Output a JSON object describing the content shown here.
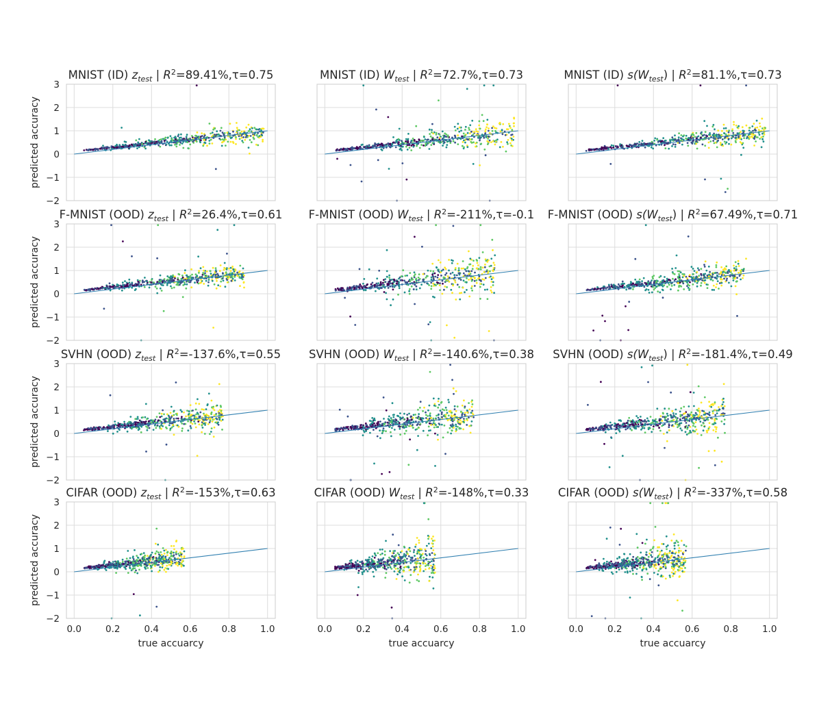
{
  "chart_data": {
    "type": "scatter",
    "grid": true,
    "x_label": "true accuarcy",
    "y_label": "predicted accuracy",
    "xlim": [
      -0.04,
      1.04
    ],
    "ylim": [
      -2,
      3
    ],
    "x_ticks": [
      "0.0",
      "0.2",
      "0.4",
      "0.6",
      "0.8",
      "1.0"
    ],
    "y_ticks": [
      "3",
      "2",
      "1",
      "0",
      "−1",
      "−2"
    ],
    "reference_line": {
      "from": [
        0,
        0
      ],
      "to": [
        1,
        1
      ],
      "color": "#2f7fb0"
    },
    "palette": [
      "#440154",
      "#3b528b",
      "#21908c",
      "#5dc863",
      "#fde725"
    ],
    "rows": [
      "MNIST (ID)",
      "F-MNIST (OOD)",
      "SVHN (OOD)",
      "CIFAR (OOD)"
    ],
    "columns": [
      "z_test",
      "W_test",
      "s(W_test)"
    ],
    "panels": [
      {
        "dataset": "MNIST (ID)",
        "metric": "z",
        "sub": "test",
        "r2": "R",
        "r2_value": "=89.41%,τ=0.75",
        "r2_pct": 89.41,
        "tau": 0.75,
        "x_range": [
          0.05,
          0.98
        ],
        "spread": 0.5,
        "outlier_rate": 0.02
      },
      {
        "dataset": "MNIST (ID)",
        "metric": "W",
        "sub": "test",
        "r2": "R",
        "r2_value": "=72.7%,τ=0.73",
        "r2_pct": 72.7,
        "tau": 0.73,
        "x_range": [
          0.05,
          0.98
        ],
        "spread": 0.7,
        "outlier_rate": 0.05
      },
      {
        "dataset": "MNIST (ID)",
        "metric": "s(W",
        "sub": "test",
        "close": ")",
        "r2": "R",
        "r2_value": "=81.1%,τ=0.73",
        "r2_pct": 81.1,
        "tau": 0.73,
        "x_range": [
          0.05,
          0.98
        ],
        "spread": 0.55,
        "outlier_rate": 0.03
      },
      {
        "dataset": "F-MNIST (OOD)",
        "metric": "z",
        "sub": "test",
        "r2": "R",
        "r2_value": "=26.4%,τ=0.61",
        "r2_pct": 26.4,
        "tau": 0.61,
        "x_range": [
          0.05,
          0.88
        ],
        "spread": 0.55,
        "outlier_rate": 0.02
      },
      {
        "dataset": "F-MNIST (OOD)",
        "metric": "W",
        "sub": "test",
        "r2": "R",
        "r2_value": "=-211%,τ=-0.1",
        "r2_pct": -211,
        "tau": -0.1,
        "x_range": [
          0.05,
          0.88
        ],
        "spread": 1.0,
        "outlier_rate": 0.06
      },
      {
        "dataset": "F-MNIST (OOD)",
        "metric": "s(W",
        "sub": "test",
        "close": ")",
        "r2": "R",
        "r2_value": "=67.49%,τ=0.71",
        "r2_pct": 67.49,
        "tau": 0.71,
        "x_range": [
          0.05,
          0.88
        ],
        "spread": 0.6,
        "outlier_rate": 0.04
      },
      {
        "dataset": "SVHN (OOD)",
        "metric": "z",
        "sub": "test",
        "r2": "R",
        "r2_value": "=-137.6%,τ=0.55",
        "r2_pct": -137.6,
        "tau": 0.55,
        "x_range": [
          0.05,
          0.77
        ],
        "spread": 0.7,
        "outlier_rate": 0.03
      },
      {
        "dataset": "SVHN (OOD)",
        "metric": "W",
        "sub": "test",
        "r2": "R",
        "r2_value": "=-140.6%,τ=0.38",
        "r2_pct": -140.6,
        "tau": 0.38,
        "x_range": [
          0.05,
          0.77
        ],
        "spread": 1.0,
        "outlier_rate": 0.06
      },
      {
        "dataset": "SVHN (OOD)",
        "metric": "s(W",
        "sub": "test",
        "close": ")",
        "r2": "R",
        "r2_value": "=-181.4%,τ=0.49",
        "r2_pct": -181.4,
        "tau": 0.49,
        "x_range": [
          0.05,
          0.77
        ],
        "spread": 0.9,
        "outlier_rate": 0.05
      },
      {
        "dataset": "CIFAR (OOD)",
        "metric": "z",
        "sub": "test",
        "r2": "R",
        "r2_value": "=-153%,τ=0.63",
        "r2_pct": -153,
        "tau": 0.63,
        "x_range": [
          0.05,
          0.57
        ],
        "spread": 0.6,
        "outlier_rate": 0.02
      },
      {
        "dataset": "CIFAR (OOD)",
        "metric": "W",
        "sub": "test",
        "r2": "R",
        "r2_value": "=-148%,τ=0.33",
        "r2_pct": -148,
        "tau": 0.33,
        "x_range": [
          0.05,
          0.57
        ],
        "spread": 1.0,
        "outlier_rate": 0.06
      },
      {
        "dataset": "CIFAR (OOD)",
        "metric": "s(W",
        "sub": "test",
        "close": ")",
        "r2": "R",
        "r2_value": "=-337%,τ=0.58",
        "r2_pct": -337,
        "tau": 0.58,
        "x_range": [
          0.05,
          0.57
        ],
        "spread": 0.95,
        "outlier_rate": 0.05
      }
    ]
  }
}
